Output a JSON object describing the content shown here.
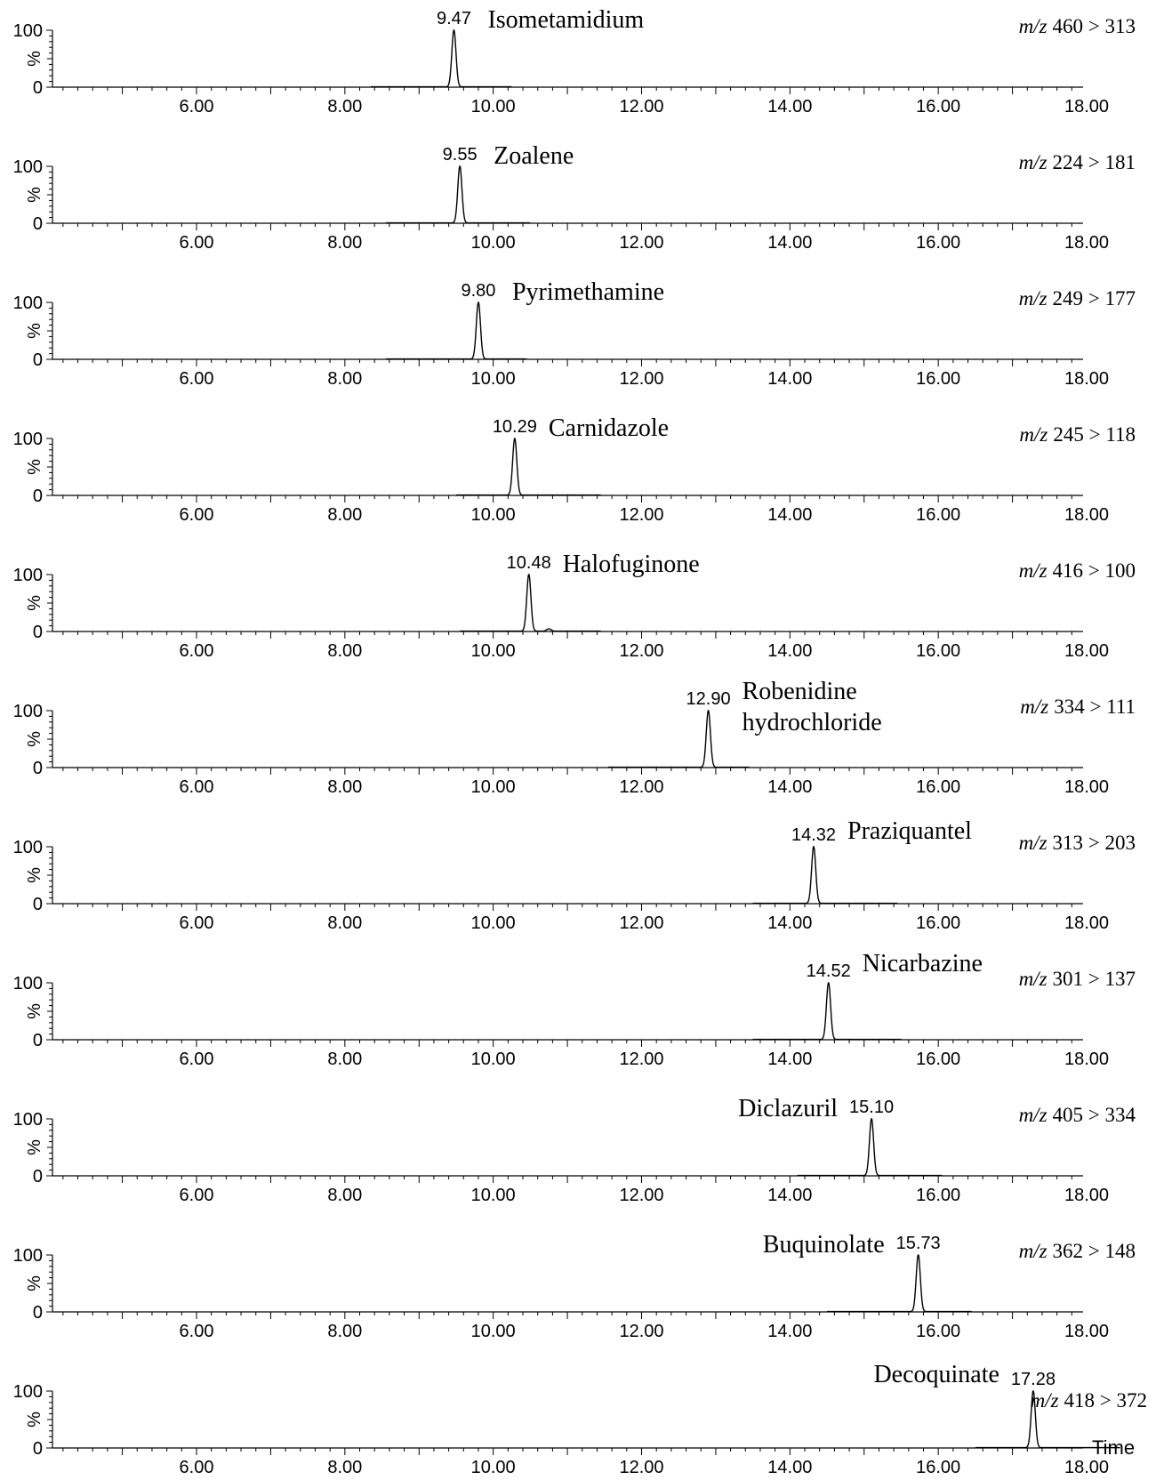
{
  "chart_data": {
    "type": "line",
    "x_tick_labels": [
      "6.00",
      "8.00",
      "10.00",
      "12.00",
      "14.00",
      "16.00",
      "18.00"
    ],
    "x_ticks": [
      6,
      8,
      10,
      12,
      14,
      16,
      18
    ],
    "xlim": [
      4.0,
      18.4
    ],
    "ylim": [
      0,
      100
    ],
    "y_tick_labels": [
      "100",
      "%",
      "0"
    ],
    "grid": false,
    "x_axis_title": "Time",
    "panels": [
      {
        "compound": [
          "Isometamidium"
        ],
        "rt": 9.47,
        "rt_label": "9.47",
        "mz_prefix": "m/z",
        "mz": "460 > 313",
        "baseline_range": [
          8.35,
          10.25
        ],
        "minor_peaks": []
      },
      {
        "compound": [
          "Zoalene"
        ],
        "rt": 9.55,
        "rt_label": "9.55",
        "mz_prefix": "m/z",
        "mz": "224 > 181",
        "baseline_range": [
          8.55,
          10.5
        ],
        "minor_peaks": []
      },
      {
        "compound": [
          "Pyrimethamine"
        ],
        "rt": 9.8,
        "rt_label": "9.80",
        "mz_prefix": "m/z",
        "mz": "249 > 177",
        "baseline_range": [
          8.55,
          10.45
        ],
        "minor_peaks": []
      },
      {
        "compound": [
          "Carnidazole"
        ],
        "rt": 10.29,
        "rt_label": "10.29",
        "mz_prefix": "m/z",
        "mz": "245 > 118",
        "baseline_range": [
          9.5,
          11.45
        ],
        "minor_peaks": []
      },
      {
        "compound": [
          "Halofuginone"
        ],
        "rt": 10.48,
        "rt_label": "10.48",
        "mz_prefix": "m/z",
        "mz": "416 > 100",
        "baseline_range": [
          9.55,
          11.45
        ],
        "minor_peaks": [
          {
            "x": 10.75,
            "y": 4
          }
        ]
      },
      {
        "compound": [
          "Robenidine",
          "hydrochloride"
        ],
        "rt": 12.9,
        "rt_label": "12.90",
        "mz_prefix": "m/z",
        "mz": "334 > 111",
        "baseline_range": [
          11.55,
          13.45
        ],
        "minor_peaks": []
      },
      {
        "compound": [
          "Praziquantel"
        ],
        "rt": 14.32,
        "rt_label": "14.32",
        "mz_prefix": "m/z",
        "mz": "313 > 203",
        "baseline_range": [
          13.5,
          15.45
        ],
        "minor_peaks": []
      },
      {
        "compound": [
          "Nicarbazine"
        ],
        "rt": 14.52,
        "rt_label": "14.52",
        "mz_prefix": "m/z",
        "mz": "301 > 137",
        "baseline_range": [
          13.5,
          15.5
        ],
        "minor_peaks": []
      },
      {
        "compound": [
          "Diclazuril"
        ],
        "rt": 15.1,
        "rt_label": "15.10",
        "mz_prefix": "m/z",
        "mz": "405 > 334",
        "baseline_range": [
          14.1,
          16.05
        ],
        "minor_peaks": []
      },
      {
        "compound": [
          "Buquinolate"
        ],
        "rt": 15.73,
        "rt_label": "15.73",
        "mz_prefix": "m/z",
        "mz": "362 > 148",
        "baseline_range": [
          14.5,
          16.45
        ],
        "minor_peaks": []
      },
      {
        "compound": [
          "Decoquinate"
        ],
        "rt": 17.28,
        "rt_label": "17.28",
        "mz_prefix": "m/z",
        "mz": "418 > 372",
        "baseline_range": [
          16.5,
          18.45
        ],
        "minor_peaks": []
      }
    ]
  }
}
